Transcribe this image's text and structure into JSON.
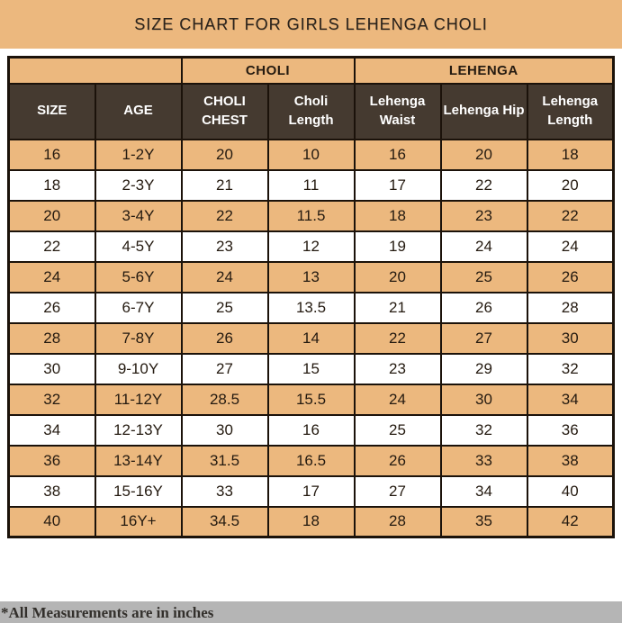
{
  "title": "SIZE CHART FOR GIRLS LEHENGA CHOLI",
  "colors": {
    "tan": "#ECB87E",
    "header_brown": "#453A30",
    "grid_border": "#1B120A",
    "footer_gray": "#B5B5B5",
    "header_text": "#FFFFFF",
    "cell_text": "#241A10"
  },
  "table": {
    "group_headers": [
      {
        "label": "",
        "span": 2
      },
      {
        "label": "CHOLI",
        "span": 2
      },
      {
        "label": "LEHENGA",
        "span": 3
      }
    ],
    "columns": [
      "SIZE",
      "AGE",
      "CHOLI CHEST",
      "Choli Length",
      "Lehenga Waist",
      "Lehenga Hip",
      "Lehenga Length"
    ],
    "rows": [
      [
        "16",
        "1-2Y",
        "20",
        "10",
        "16",
        "20",
        "18"
      ],
      [
        "18",
        "2-3Y",
        "21",
        "11",
        "17",
        "22",
        "20"
      ],
      [
        "20",
        "3-4Y",
        "22",
        "11.5",
        "18",
        "23",
        "22"
      ],
      [
        "22",
        "4-5Y",
        "23",
        "12",
        "19",
        "24",
        "24"
      ],
      [
        "24",
        "5-6Y",
        "24",
        "13",
        "20",
        "25",
        "26"
      ],
      [
        "26",
        "6-7Y",
        "25",
        "13.5",
        "21",
        "26",
        "28"
      ],
      [
        "28",
        "7-8Y",
        "26",
        "14",
        "22",
        "27",
        "30"
      ],
      [
        "30",
        "9-10Y",
        "27",
        "15",
        "23",
        "29",
        "32"
      ],
      [
        "32",
        "11-12Y",
        "28.5",
        "15.5",
        "24",
        "30",
        "34"
      ],
      [
        "34",
        "12-13Y",
        "30",
        "16",
        "25",
        "32",
        "36"
      ],
      [
        "36",
        "13-14Y",
        "31.5",
        "16.5",
        "26",
        "33",
        "38"
      ],
      [
        "38",
        "15-16Y",
        "33",
        "17",
        "27",
        "34",
        "40"
      ],
      [
        "40",
        "16Y+",
        "34.5",
        "18",
        "28",
        "35",
        "42"
      ]
    ]
  },
  "footer_note": "*All Measurements are in inches"
}
